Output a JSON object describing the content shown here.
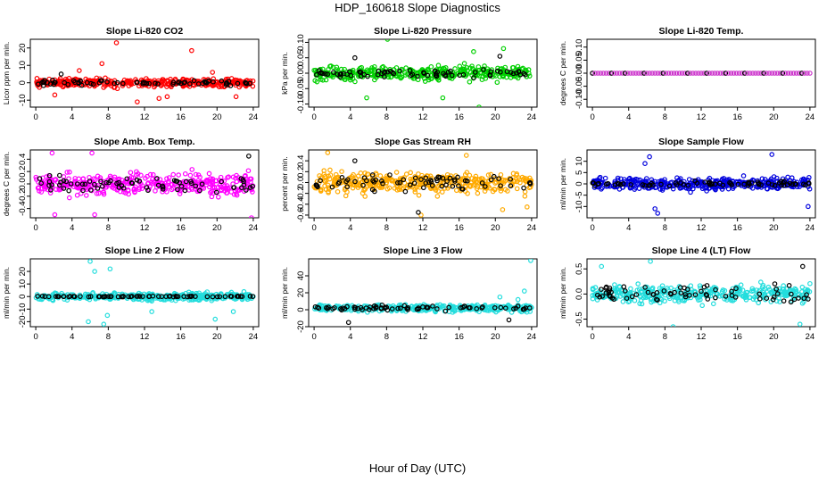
{
  "page": {
    "title": "HDP_160618  Slope Diagnostics",
    "xlabel": "Hour of Day (UTC)"
  },
  "chart_data": [
    {
      "type": "scatter",
      "title": "Slope Li-820 CO2",
      "ylabel": "Licor ppm per min.",
      "color": "#ff0000",
      "xlim": [
        -0.6,
        24.6
      ],
      "ylim": [
        -14,
        25
      ],
      "xticks": [
        0,
        4,
        8,
        12,
        16,
        20,
        24
      ],
      "yticks": [
        -10,
        0,
        10,
        20
      ],
      "spread": 3,
      "baseline": 0,
      "outliers": [
        [
          8.9,
          23
        ],
        [
          17.2,
          18.5
        ],
        [
          7.3,
          11
        ],
        [
          11.2,
          -11
        ],
        [
          13.6,
          -9
        ],
        [
          4.8,
          7
        ],
        [
          19.5,
          6
        ],
        [
          14.5,
          -8
        ],
        [
          2.1,
          -7
        ],
        [
          22.1,
          -8
        ]
      ],
      "black_spread": 2,
      "black_outliers": [
        [
          2.8,
          5
        ]
      ]
    },
    {
      "type": "scatter",
      "title": "Slope Li-820 Pressure",
      "ylabel": "kPa per min.",
      "color": "#00d000",
      "xlim": [
        -0.6,
        24.6
      ],
      "ylim": [
        -0.11,
        0.11
      ],
      "xticks": [
        0,
        4,
        8,
        12,
        16,
        20,
        24
      ],
      "yticks": [
        -0.1,
        -0.05,
        0.0,
        0.05,
        0.1
      ],
      "spread": 0.03,
      "baseline": 0,
      "outliers": [
        [
          8.1,
          0.11
        ],
        [
          18.2,
          -0.11
        ],
        [
          20.9,
          0.08
        ],
        [
          5.8,
          -0.08
        ],
        [
          14.2,
          -0.08
        ],
        [
          17.6,
          0.07
        ]
      ],
      "black_spread": 0.02,
      "black_outliers": [
        [
          4.5,
          0.05
        ],
        [
          20.5,
          0.055
        ]
      ]
    },
    {
      "type": "scatter",
      "title": "Slope Li-820 Temp.",
      "ylabel": "degrees C per min.",
      "color": "#cc33cc",
      "xlim": [
        -0.6,
        24.6
      ],
      "ylim": [
        -0.13,
        0.13
      ],
      "xticks": [
        0,
        4,
        8,
        12,
        16,
        20,
        24
      ],
      "yticks": [
        -0.1,
        -0.05,
        0.0,
        0.05,
        0.1
      ],
      "mode": "flat",
      "baseline": 0,
      "spread": 0,
      "outliers": [],
      "black_spread": 0,
      "black_outliers": []
    },
    {
      "type": "scatter",
      "title": "Slope Amb. Box Temp.",
      "ylabel": "degrees C per min.",
      "color": "#ff00ff",
      "xlim": [
        -0.6,
        24.6
      ],
      "ylim": [
        -0.55,
        0.55
      ],
      "xticks": [
        0,
        4,
        8,
        12,
        16,
        20,
        24
      ],
      "yticks": [
        -0.4,
        -0.2,
        0.0,
        0.2,
        0.4
      ],
      "spread": 0.22,
      "baseline": 0,
      "outliers": [
        [
          6.5,
          -0.5
        ],
        [
          2.1,
          -0.5
        ],
        [
          23.8,
          -0.55
        ],
        [
          1.8,
          0.5
        ],
        [
          6.2,
          0.5
        ]
      ],
      "black_spread": 0.2,
      "black_outliers": [
        [
          23.5,
          0.45
        ]
      ]
    },
    {
      "type": "scatter",
      "title": "Slope Gas Stream RH",
      "ylabel": "percent per min.",
      "color": "#ffaa00",
      "xlim": [
        -0.6,
        24.6
      ],
      "ylim": [
        -0.65,
        0.6
      ],
      "xticks": [
        0,
        4,
        8,
        12,
        16,
        20,
        24
      ],
      "yticks": [
        -0.6,
        -0.4,
        -0.2,
        0.0,
        0.2,
        0.4
      ],
      "spread": 0.25,
      "baseline": 0,
      "outliers": [
        [
          1.5,
          0.55
        ],
        [
          11.8,
          -0.6
        ],
        [
          16.8,
          0.5
        ],
        [
          20.8,
          -0.5
        ],
        [
          23.5,
          -0.45
        ]
      ],
      "black_spread": 0.2,
      "black_outliers": [
        [
          11.5,
          -0.55
        ],
        [
          4.5,
          0.4
        ]
      ]
    },
    {
      "type": "scatter",
      "title": "Slope Sample Flow",
      "ylabel": "ml/min per min.",
      "color": "#0000dd",
      "xlim": [
        -0.6,
        24.6
      ],
      "ylim": [
        -15,
        15
      ],
      "xticks": [
        0,
        4,
        8,
        12,
        16,
        20,
        24
      ],
      "yticks": [
        -10,
        -5,
        0,
        5,
        10
      ],
      "spread": 3.5,
      "baseline": 0,
      "outliers": [
        [
          6.3,
          12
        ],
        [
          7.2,
          -13
        ],
        [
          19.8,
          13
        ],
        [
          23.8,
          -10
        ],
        [
          6.9,
          -11
        ],
        [
          5.8,
          9
        ]
      ],
      "black_spread": 1.5,
      "black_outliers": [
        [
          8.5,
          -1
        ]
      ]
    },
    {
      "type": "scatter",
      "title": "Slope Line 2 Flow",
      "ylabel": "ml/min per min.",
      "color": "#22dddd",
      "xlim": [
        -0.6,
        24.6
      ],
      "ylim": [
        -24,
        30
      ],
      "xticks": [
        0,
        4,
        8,
        12,
        16,
        20,
        24
      ],
      "yticks": [
        -20,
        -10,
        0,
        10,
        20
      ],
      "spread": 4,
      "baseline": 0,
      "outliers": [
        [
          6.0,
          28
        ],
        [
          8.2,
          22
        ],
        [
          5.8,
          -20
        ],
        [
          7.9,
          -15
        ],
        [
          21.8,
          -12
        ],
        [
          19.8,
          -18
        ],
        [
          12.8,
          -12
        ],
        [
          6.5,
          20
        ],
        [
          7.5,
          -22
        ]
      ],
      "black_spread": 0.4,
      "black_outliers": []
    },
    {
      "type": "scatter",
      "title": "Slope Line 3 Flow",
      "ylabel": "ml/min per min.",
      "color": "#22dddd",
      "xlim": [
        -0.6,
        24.6
      ],
      "ylim": [
        -20,
        60
      ],
      "xticks": [
        0,
        4,
        8,
        12,
        16,
        20,
        24
      ],
      "yticks": [
        -20,
        0,
        20,
        40
      ],
      "spread": 5,
      "baseline": 2,
      "outliers": [
        [
          23.9,
          58
        ],
        [
          23.2,
          22
        ],
        [
          20.5,
          15
        ],
        [
          22.5,
          12
        ]
      ],
      "black_spread": 4,
      "black_outliers": [
        [
          3.8,
          -15
        ],
        [
          21.5,
          -12
        ]
      ]
    },
    {
      "type": "scatter",
      "title": "Slope Line 4 (LT) Flow",
      "ylabel": "ml/min per min.",
      "color": "#22dddd",
      "xlim": [
        -0.6,
        24.6
      ],
      "ylim": [
        -0.65,
        0.7
      ],
      "xticks": [
        0,
        4,
        8,
        12,
        16,
        20,
        24
      ],
      "yticks": [
        -0.5,
        0.0,
        0.5
      ],
      "spread": 0.22,
      "baseline": 0,
      "outliers": [
        [
          6.4,
          0.65
        ],
        [
          8.9,
          -0.65
        ],
        [
          22.9,
          -0.6
        ],
        [
          1.0,
          0.55
        ]
      ],
      "black_spread": 0.2,
      "black_outliers": [
        [
          23.2,
          0.55
        ]
      ]
    }
  ]
}
